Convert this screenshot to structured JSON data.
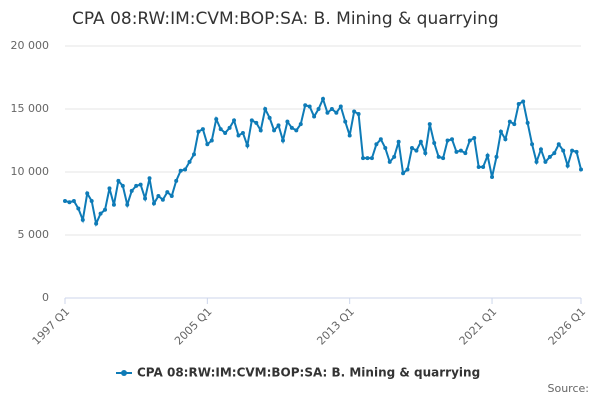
{
  "chart_data": {
    "type": "line",
    "title": "CPA 08:RW:IM:CVM:BOP:SA: B. Mining & quarrying",
    "source": "Source:",
    "categories": [
      "1997 Q1",
      null,
      null,
      null,
      null,
      null,
      null,
      null,
      null,
      null,
      null,
      null,
      null,
      null,
      null,
      null,
      null,
      null,
      null,
      null,
      null,
      null,
      null,
      null,
      null,
      null,
      null,
      null,
      null,
      null,
      null,
      null,
      "2005 Q1",
      null,
      null,
      null,
      null,
      null,
      null,
      null,
      null,
      null,
      null,
      null,
      null,
      null,
      null,
      null,
      null,
      null,
      null,
      null,
      null,
      null,
      null,
      null,
      null,
      null,
      null,
      null,
      null,
      null,
      null,
      null,
      "2013 Q1",
      null,
      null,
      null,
      null,
      null,
      null,
      null,
      null,
      null,
      null,
      null,
      null,
      null,
      null,
      null,
      null,
      null,
      null,
      null,
      null,
      null,
      null,
      null,
      null,
      null,
      null,
      null,
      null,
      null,
      null,
      null,
      "2021 Q1",
      null,
      null,
      null,
      null,
      null,
      null,
      null,
      null,
      null,
      null,
      null,
      null,
      null,
      null,
      null,
      null,
      null,
      null,
      null,
      "2026 Q1"
    ],
    "series": [
      {
        "name": "CPA 08:RW:IM:CVM:BOP:SA: B. Mining & quarrying",
        "color": "#0e7bb7",
        "values": [
          7700,
          7600,
          7700,
          7100,
          6200,
          8300,
          7700,
          5900,
          6700,
          7000,
          8700,
          7400,
          9300,
          8900,
          7400,
          8500,
          8900,
          9000,
          7900,
          9500,
          7500,
          8100,
          7800,
          8400,
          8100,
          9300,
          10100,
          10200,
          10800,
          11400,
          13200,
          13400,
          12200,
          12500,
          14200,
          13400,
          13100,
          13500,
          14100,
          12900,
          13100,
          12100,
          14100,
          13900,
          13300,
          15000,
          14300,
          13300,
          13700,
          12500,
          14000,
          13500,
          13300,
          13800,
          15300,
          15200,
          14400,
          15000,
          15800,
          14700,
          15000,
          14700,
          15200,
          14000,
          12900,
          14800,
          14600,
          11100,
          11100,
          11100,
          12200,
          12600,
          11900,
          10800,
          11200,
          12400,
          9900,
          10200,
          11900,
          11700,
          12400,
          11500,
          13800,
          12300,
          11200,
          11100,
          12500,
          12600,
          11600,
          11700,
          11500,
          12500,
          12700,
          10400,
          10400,
          11300,
          9600,
          11200,
          13200,
          12600,
          14000,
          13800,
          15400,
          15600,
          13900,
          12200,
          10800,
          11800,
          10800,
          11200,
          11500,
          12200,
          11700,
          10500,
          11700,
          11600,
          10200
        ]
      }
    ],
    "ylim": [
      0,
      20000
    ],
    "yticks": [
      0,
      {
        "value": 5000,
        "label": "5 000"
      },
      {
        "value": 10000,
        "label": "10 000"
      },
      {
        "value": 15000,
        "label": "15 000"
      },
      {
        "value": 20000,
        "label": "20 000"
      }
    ],
    "grid": true
  }
}
